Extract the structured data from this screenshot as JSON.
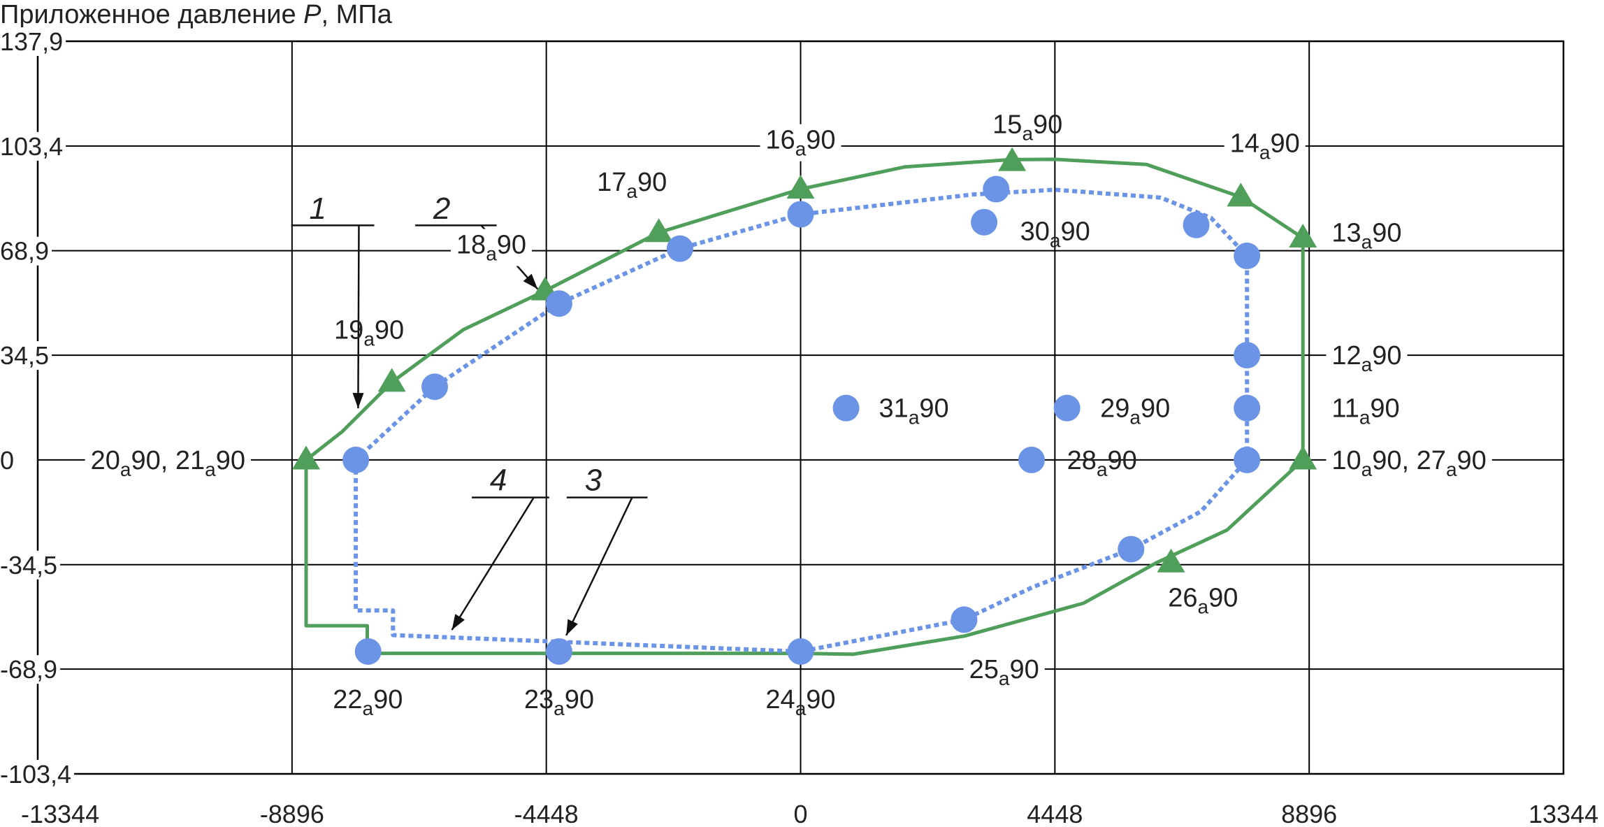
{
  "chart_data": {
    "type": "scatter",
    "ylabel": {
      "prefix": "Приложенное давление ",
      "var": "P",
      "suffix": ", МПа"
    },
    "xlim": [
      -13344,
      13344
    ],
    "ylim": [
      -103.4,
      137.9
    ],
    "x_ticks": [
      {
        "value": -13344,
        "label": "-13344"
      },
      {
        "value": -8896,
        "label": "-8896"
      },
      {
        "value": -4448,
        "label": "-4448"
      },
      {
        "value": 0,
        "label": "0"
      },
      {
        "value": 4448,
        "label": "4448"
      },
      {
        "value": 8896,
        "label": "8896"
      },
      {
        "value": 13344,
        "label": "13344"
      }
    ],
    "y_ticks": [
      {
        "value": 137.9,
        "label": "137,9"
      },
      {
        "value": 103.4,
        "label": "103,4"
      },
      {
        "value": 68.9,
        "label": "68,9"
      },
      {
        "value": 34.5,
        "label": "34,5"
      },
      {
        "value": 0,
        "label": "0"
      },
      {
        "value": -34.5,
        "label": "-34,5"
      },
      {
        "value": -68.9,
        "label": "-68,9"
      },
      {
        "value": -103.4,
        "label": "-103,4"
      }
    ],
    "grid": true,
    "colors": {
      "green": "#4f9e5a",
      "blue": "#6b93e6",
      "grid": "#000000"
    },
    "series": [
      {
        "id": "curve1",
        "style": "solid",
        "color": "#4f9e5a",
        "path": [
          [
            -8650,
            0
          ],
          [
            -8020,
            9.3
          ],
          [
            -7150,
            25.6
          ],
          [
            -5900,
            42.9
          ],
          [
            -4470,
            55.7
          ],
          [
            -2480,
            74.9
          ],
          [
            0,
            89.2
          ],
          [
            1820,
            96.5
          ],
          [
            3660,
            98.9
          ],
          [
            4448,
            99.0
          ],
          [
            6050,
            97.3
          ],
          [
            7700,
            86.6
          ],
          [
            8786,
            73.1
          ],
          [
            8786,
            0
          ],
          [
            7460,
            -23.1
          ],
          [
            6220,
            -33.9
          ],
          [
            4948,
            -47.2
          ],
          [
            2868,
            -58.0
          ],
          [
            920,
            -64.0
          ],
          [
            0,
            -63.7
          ],
          [
            -7580,
            -63.7
          ],
          [
            -7580,
            -54.6
          ],
          [
            -8650,
            -54.6
          ],
          [
            -8650,
            0
          ]
        ]
      },
      {
        "id": "curve2",
        "style": "dotted",
        "color": "#6b93e6",
        "path": [
          [
            -7780,
            0
          ],
          [
            -6400,
            24.1
          ],
          [
            -4225,
            51.5
          ],
          [
            -2110,
            69.6
          ],
          [
            0,
            80.9
          ],
          [
            3000,
            87.4
          ],
          [
            4448,
            89.0
          ],
          [
            6300,
            86.4
          ],
          [
            7180,
            79.7
          ],
          [
            7808,
            67.2
          ],
          [
            7808,
            0
          ],
          [
            7000,
            -17.0
          ],
          [
            5780,
            -29.4
          ],
          [
            4060,
            -41.9
          ],
          [
            2860,
            -52.6
          ],
          [
            0,
            -63.1
          ],
          [
            -7130,
            -57.7
          ],
          [
            -7130,
            -49.6
          ],
          [
            -7780,
            -49.6
          ],
          [
            -7780,
            0
          ]
        ]
      }
    ],
    "triangles": [
      [
        -8650,
        0
      ],
      [
        -7150,
        25.6
      ],
      [
        -4470,
        55.7
      ],
      [
        -2480,
        74.9
      ],
      [
        0,
        89.2
      ],
      [
        3700,
        98.3
      ],
      [
        7700,
        86.6
      ],
      [
        8786,
        73.1
      ],
      [
        8786,
        0
      ],
      [
        6480,
        -33.9
      ]
    ],
    "circles": [
      [
        -7780,
        0
      ],
      [
        -6400,
        24.1
      ],
      [
        -4225,
        51.5
      ],
      [
        -2110,
        69.6
      ],
      [
        0,
        80.9
      ],
      [
        3420,
        89.2
      ],
      [
        3210,
        78.3
      ],
      [
        6920,
        77.4
      ],
      [
        7808,
        67.2
      ],
      [
        7808,
        34.5
      ],
      [
        7808,
        17.1
      ],
      [
        7808,
        0
      ],
      [
        5780,
        -29.4
      ],
      [
        2860,
        -52.6
      ],
      [
        0,
        -63.1
      ],
      [
        -4225,
        -63.1
      ],
      [
        -7565,
        -63.1
      ],
      [
        4040,
        0
      ],
      [
        4660,
        17.1
      ],
      [
        795,
        17.1
      ]
    ],
    "point_labels": [
      {
        "num": "20",
        "sub": "а",
        "tail": "90",
        "sep": ", ",
        "num2": "21",
        "sub2": "а",
        "tail2": "90",
        "x": -12420,
        "y": 0,
        "anchor": "start",
        "white_bg": true
      },
      {
        "num": "19",
        "sub": "а",
        "tail": "90",
        "x": -8160,
        "y": 42.9,
        "anchor": "start"
      },
      {
        "num": "18",
        "sub": "а",
        "tail": "90",
        "x": -5410,
        "y": 71.0,
        "anchor": "middle",
        "white_bg": true
      },
      {
        "num": "17",
        "sub": "а",
        "tail": "90",
        "x": -2950,
        "y": 91.6,
        "anchor": "middle"
      },
      {
        "num": "16",
        "sub": "а",
        "tail": "90",
        "x": 0,
        "y": 105.5,
        "anchor": "middle",
        "white_bg": true
      },
      {
        "num": "15",
        "sub": "а",
        "tail": "90",
        "x": 3970,
        "y": 110.6,
        "anchor": "middle"
      },
      {
        "num": "14",
        "sub": "а",
        "tail": "90",
        "x": 8120,
        "y": 104.4,
        "anchor": "middle",
        "white_bg": true
      },
      {
        "num": "13",
        "sub": "а",
        "tail": "90",
        "x": 9290,
        "y": 74.9,
        "anchor": "start"
      },
      {
        "num": "30",
        "sub": "а",
        "tail": "90",
        "x": 3840,
        "y": 75.4,
        "anchor": "start"
      },
      {
        "num": "12",
        "sub": "а",
        "tail": "90",
        "x": 9290,
        "y": 34.5,
        "anchor": "start",
        "white_bg": true
      },
      {
        "num": "11",
        "sub": "а",
        "tail": "90",
        "x": 9290,
        "y": 17.1,
        "anchor": "start"
      },
      {
        "num": "10",
        "sub": "а",
        "tail": "90",
        "sep": ", ",
        "num2": "27",
        "sub2": "а",
        "tail2": "90",
        "x": 9290,
        "y": 0,
        "anchor": "start",
        "white_bg": true
      },
      {
        "num": "29",
        "sub": "а",
        "tail": "90",
        "x": 5240,
        "y": 17.1,
        "anchor": "start"
      },
      {
        "num": "31",
        "sub": "а",
        "tail": "90",
        "x": 1370,
        "y": 17.1,
        "anchor": "start"
      },
      {
        "num": "28",
        "sub": "а",
        "tail": "90",
        "x": 4660,
        "y": 0,
        "anchor": "start"
      },
      {
        "num": "26",
        "sub": "а",
        "tail": "90",
        "x": 7040,
        "y": -45.3,
        "anchor": "middle"
      },
      {
        "num": "25",
        "sub": "а",
        "tail": "90",
        "x": 3560,
        "y": -68.9,
        "anchor": "middle",
        "white_bg": true
      },
      {
        "num": "24",
        "sub": "а",
        "tail": "90",
        "x": 0,
        "y": -78.8,
        "anchor": "middle"
      },
      {
        "num": "23",
        "sub": "а",
        "tail": "90",
        "x": -4225,
        "y": -78.8,
        "anchor": "middle"
      },
      {
        "num": "22",
        "sub": "а",
        "tail": "90",
        "x": -7570,
        "y": -78.8,
        "anchor": "middle"
      }
    ],
    "callouts": [
      {
        "label": "1",
        "lx": -8740,
        "ly": 79.4,
        "ax": -7580,
        "ay": 73.1,
        "tx": -7740,
        "ty": 17.0
      },
      {
        "label": "2",
        "lx": -6570,
        "ly": 79.4,
        "ax": -5440,
        "ay": 73.1,
        "tx": -4600,
        "ty": 56.3
      },
      {
        "label": "3",
        "lx": -3920,
        "ly": -10.0,
        "ax": -2800,
        "ay": -16.5,
        "tx": -4100,
        "ty": -57.8
      },
      {
        "label": "4",
        "lx": -5580,
        "ly": -10.0,
        "ax": -4520,
        "ay": -16.5,
        "tx": -6100,
        "ty": -56.0
      }
    ]
  }
}
